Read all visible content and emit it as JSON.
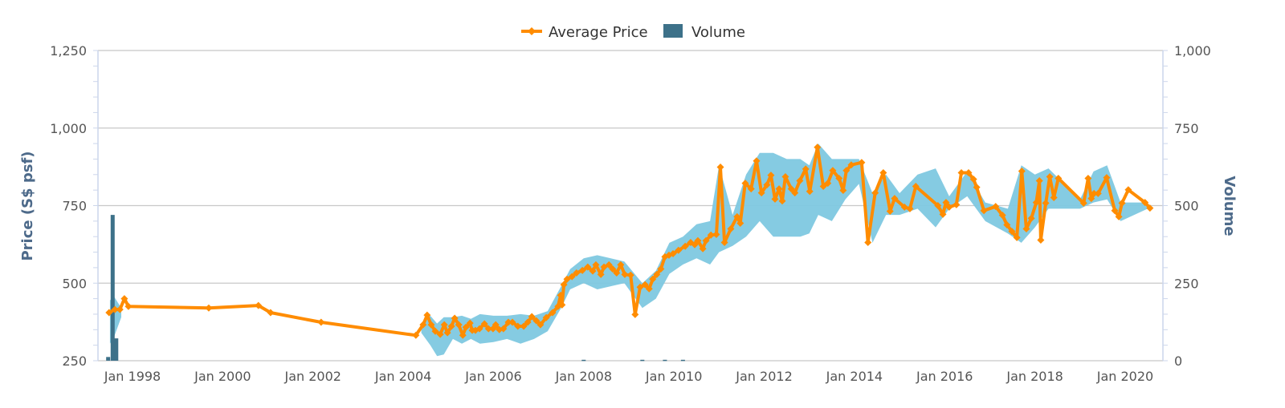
{
  "chart_data": {
    "type": "line",
    "legend": {
      "position": "top-center",
      "items": [
        {
          "name": "Average Price",
          "color": "#ff8c00",
          "kind": "line"
        },
        {
          "name": "Volume",
          "color": "#3d7189",
          "kind": "bar"
        }
      ]
    },
    "y_left": {
      "title": "Price (S$ psf)",
      "range": [
        250,
        1250
      ],
      "ticks": [
        "250",
        "500",
        "750",
        "1,000",
        "1,250"
      ],
      "tick_values": [
        250,
        500,
        750,
        1000,
        1250
      ]
    },
    "y_right": {
      "title": "Volume",
      "range": [
        0,
        1000
      ],
      "ticks": [
        "0",
        "250",
        "500",
        "750",
        "1,000"
      ],
      "tick_values": [
        0,
        250,
        500,
        750,
        1000
      ]
    },
    "x": {
      "range": [
        1997.3,
        2020.75
      ],
      "ticks": [
        "Jan 1998",
        "Jan 2000",
        "Jan 2002",
        "Jan 2004",
        "Jan 2006",
        "Jan 2008",
        "Jan 2010",
        "Jan 2012",
        "Jan 2014",
        "Jan 2016",
        "Jan 2018",
        "Jan 2020"
      ],
      "tick_values": [
        1998,
        2000,
        2002,
        2004,
        2006,
        2008,
        2010,
        2012,
        2014,
        2016,
        2018,
        2020
      ]
    },
    "grid": true,
    "colors": {
      "price": "#ff8c00",
      "range": "#7ec8e0",
      "volume": "#3d7189",
      "grid": "#c8c8c8",
      "axis": "#ccd6eb"
    },
    "average_price": [
      [
        1997.48,
        405
      ],
      [
        1997.61,
        415
      ],
      [
        1997.72,
        415
      ],
      [
        1997.82,
        450
      ],
      [
        1997.91,
        425
      ],
      [
        1999.69,
        420
      ],
      [
        2000.79,
        428
      ],
      [
        2001.06,
        405
      ],
      [
        2002.18,
        374
      ],
      [
        2004.28,
        332
      ],
      [
        2004.44,
        366
      ],
      [
        2004.53,
        397
      ],
      [
        2004.62,
        366
      ],
      [
        2004.71,
        345
      ],
      [
        2004.82,
        335
      ],
      [
        2004.91,
        366
      ],
      [
        2004.98,
        340
      ],
      [
        2005.07,
        361
      ],
      [
        2005.14,
        387
      ],
      [
        2005.23,
        366
      ],
      [
        2005.32,
        332
      ],
      [
        2005.39,
        358
      ],
      [
        2005.48,
        371
      ],
      [
        2005.53,
        348
      ],
      [
        2005.6,
        348
      ],
      [
        2005.69,
        353
      ],
      [
        2005.8,
        369
      ],
      [
        2005.89,
        353
      ],
      [
        2005.99,
        353
      ],
      [
        2006.05,
        366
      ],
      [
        2006.13,
        350
      ],
      [
        2006.22,
        353
      ],
      [
        2006.33,
        374
      ],
      [
        2006.42,
        374
      ],
      [
        2006.54,
        361
      ],
      [
        2006.67,
        361
      ],
      [
        2006.76,
        374
      ],
      [
        2006.85,
        392
      ],
      [
        2006.95,
        379
      ],
      [
        2007.04,
        366
      ],
      [
        2007.17,
        389
      ],
      [
        2007.31,
        405
      ],
      [
        2007.43,
        425
      ],
      [
        2007.49,
        461
      ],
      [
        2007.52,
        430
      ],
      [
        2007.56,
        495
      ],
      [
        2007.63,
        513
      ],
      [
        2007.74,
        521
      ],
      [
        2007.84,
        533
      ],
      [
        2007.97,
        541
      ],
      [
        2008.09,
        552
      ],
      [
        2008.2,
        539
      ],
      [
        2008.27,
        559
      ],
      [
        2008.38,
        528
      ],
      [
        2008.45,
        552
      ],
      [
        2008.56,
        559
      ],
      [
        2008.64,
        546
      ],
      [
        2008.73,
        533
      ],
      [
        2008.82,
        559
      ],
      [
        2008.91,
        528
      ],
      [
        2009.04,
        526
      ],
      [
        2009.14,
        399
      ],
      [
        2009.25,
        487
      ],
      [
        2009.36,
        495
      ],
      [
        2009.45,
        482
      ],
      [
        2009.53,
        513
      ],
      [
        2009.62,
        528
      ],
      [
        2009.71,
        546
      ],
      [
        2009.8,
        585
      ],
      [
        2009.89,
        590
      ],
      [
        2009.98,
        595
      ],
      [
        2010.1,
        606
      ],
      [
        2010.25,
        619
      ],
      [
        2010.37,
        631
      ],
      [
        2010.46,
        624
      ],
      [
        2010.53,
        637
      ],
      [
        2010.64,
        611
      ],
      [
        2010.71,
        637
      ],
      [
        2010.82,
        655
      ],
      [
        2010.94,
        657
      ],
      [
        2011.03,
        874
      ],
      [
        2011.12,
        631
      ],
      [
        2011.26,
        675
      ],
      [
        2011.4,
        714
      ],
      [
        2011.47,
        693
      ],
      [
        2011.58,
        822
      ],
      [
        2011.71,
        804
      ],
      [
        2011.83,
        894
      ],
      [
        2011.94,
        791
      ],
      [
        2012.06,
        817
      ],
      [
        2012.15,
        848
      ],
      [
        2012.24,
        771
      ],
      [
        2012.33,
        804
      ],
      [
        2012.4,
        765
      ],
      [
        2012.47,
        843
      ],
      [
        2012.6,
        804
      ],
      [
        2012.68,
        791
      ],
      [
        2012.79,
        830
      ],
      [
        2012.92,
        868
      ],
      [
        2013.01,
        796
      ],
      [
        2013.18,
        938
      ],
      [
        2013.31,
        812
      ],
      [
        2013.41,
        822
      ],
      [
        2013.52,
        863
      ],
      [
        2013.66,
        838
      ],
      [
        2013.75,
        799
      ],
      [
        2013.82,
        863
      ],
      [
        2013.93,
        881
      ],
      [
        2014.16,
        889
      ],
      [
        2014.3,
        631
      ],
      [
        2014.46,
        791
      ],
      [
        2014.64,
        856
      ],
      [
        2014.79,
        732
      ],
      [
        2014.89,
        773
      ],
      [
        2015.11,
        745
      ],
      [
        2015.23,
        740
      ],
      [
        2015.36,
        812
      ],
      [
        2015.85,
        750
      ],
      [
        2015.96,
        722
      ],
      [
        2016.03,
        760
      ],
      [
        2016.1,
        745
      ],
      [
        2016.26,
        753
      ],
      [
        2016.37,
        856
      ],
      [
        2016.53,
        856
      ],
      [
        2016.64,
        835
      ],
      [
        2016.71,
        809
      ],
      [
        2016.87,
        734
      ],
      [
        2017.13,
        747
      ],
      [
        2017.28,
        719
      ],
      [
        2017.38,
        688
      ],
      [
        2017.49,
        667
      ],
      [
        2017.6,
        647
      ],
      [
        2017.71,
        861
      ],
      [
        2017.81,
        675
      ],
      [
        2017.92,
        709
      ],
      [
        2018.03,
        760
      ],
      [
        2018.1,
        830
      ],
      [
        2018.13,
        639
      ],
      [
        2018.24,
        758
      ],
      [
        2018.33,
        843
      ],
      [
        2018.42,
        776
      ],
      [
        2018.52,
        838
      ],
      [
        2019.08,
        758
      ],
      [
        2019.18,
        838
      ],
      [
        2019.25,
        773
      ],
      [
        2019.31,
        789
      ],
      [
        2019.4,
        789
      ],
      [
        2019.59,
        840
      ],
      [
        2019.77,
        734
      ],
      [
        2019.86,
        714
      ],
      [
        2019.93,
        758
      ],
      [
        2020.07,
        801
      ],
      [
        2020.44,
        760
      ],
      [
        2020.55,
        742
      ]
    ],
    "price_range": [
      [
        [
          1997.5,
          305,
          445
        ],
        [
          1997.6,
          330,
          455
        ],
        [
          1997.75,
          390,
          420
        ]
      ],
      [
        [
          2004.4,
          340,
          370
        ],
        [
          2004.6,
          300,
          395
        ],
        [
          2004.75,
          265,
          370
        ],
        [
          2004.9,
          270,
          390
        ],
        [
          2005.1,
          320,
          390
        ],
        [
          2005.3,
          305,
          395
        ],
        [
          2005.5,
          320,
          385
        ],
        [
          2005.7,
          305,
          400
        ],
        [
          2006.0,
          310,
          395
        ],
        [
          2006.3,
          320,
          395
        ],
        [
          2006.6,
          305,
          400
        ],
        [
          2006.9,
          320,
          395
        ],
        [
          2007.2,
          345,
          410
        ],
        [
          2007.5,
          420,
          490
        ],
        [
          2007.7,
          480,
          545
        ],
        [
          2008.0,
          500,
          580
        ],
        [
          2008.3,
          480,
          590
        ],
        [
          2008.6,
          490,
          580
        ],
        [
          2008.9,
          500,
          570
        ],
        [
          2009.3,
          420,
          500
        ],
        [
          2009.6,
          450,
          540
        ],
        [
          2009.9,
          530,
          630
        ],
        [
          2010.2,
          560,
          650
        ],
        [
          2010.5,
          580,
          690
        ],
        [
          2010.8,
          560,
          700
        ],
        [
          2011.0,
          600,
          880
        ],
        [
          2011.3,
          620,
          720
        ],
        [
          2011.6,
          650,
          850
        ],
        [
          2011.9,
          700,
          920
        ],
        [
          2012.2,
          650,
          920
        ],
        [
          2012.5,
          650,
          900
        ],
        [
          2012.8,
          650,
          900
        ],
        [
          2013.0,
          660,
          880
        ],
        [
          2013.2,
          720,
          950
        ],
        [
          2013.5,
          700,
          900
        ],
        [
          2013.8,
          770,
          900
        ],
        [
          2014.1,
          820,
          900
        ],
        [
          2014.4,
          630,
          790
        ],
        [
          2014.7,
          720,
          850
        ],
        [
          2015.0,
          720,
          790
        ],
        [
          2015.4,
          740,
          850
        ],
        [
          2015.8,
          680,
          870
        ],
        [
          2016.1,
          740,
          780
        ],
        [
          2016.5,
          780,
          860
        ],
        [
          2016.9,
          700,
          760
        ],
        [
          2017.4,
          660,
          740
        ],
        [
          2017.7,
          630,
          880
        ],
        [
          2018.0,
          680,
          850
        ],
        [
          2018.3,
          740,
          870
        ],
        [
          2019.0,
          740,
          770
        ],
        [
          2019.3,
          760,
          860
        ],
        [
          2019.6,
          770,
          880
        ],
        [
          2019.9,
          700,
          760
        ],
        [
          2020.5,
          740,
          760
        ]
      ]
    ],
    "volume": [
      [
        1997.46,
        12
      ],
      [
        1997.56,
        470
      ],
      [
        1997.64,
        72
      ],
      [
        2008.0,
        3
      ],
      [
        2009.3,
        3
      ],
      [
        2009.8,
        3
      ],
      [
        2010.2,
        3
      ]
    ]
  }
}
